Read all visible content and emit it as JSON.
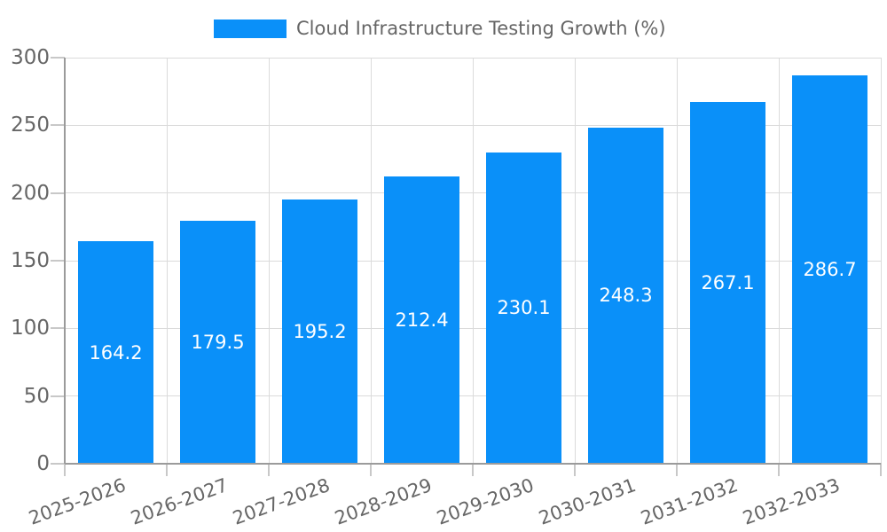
{
  "chart_data": {
    "type": "bar",
    "title": "Cloud Infrastructure Testing Growth (%)",
    "legend": {
      "position": "top",
      "entries": [
        "Cloud Infrastructure Testing Growth (%)"
      ]
    },
    "categories": [
      "2025-2026",
      "2026-2027",
      "2027-2028",
      "2028-2029",
      "2029-2030",
      "2030-2031",
      "2031-2032",
      "2032-2033"
    ],
    "series": [
      {
        "name": "Cloud Infrastructure Testing Growth (%)",
        "values": [
          164.2,
          179.5,
          195.2,
          212.4,
          230.1,
          248.3,
          267.1,
          286.7
        ]
      }
    ],
    "value_labels": [
      "164.2",
      "179.5",
      "195.2",
      "212.4",
      "230.1",
      "248.3",
      "267.1",
      "286.7"
    ],
    "ylim": [
      0,
      300
    ],
    "yticks": [
      0,
      50,
      100,
      150,
      200,
      250,
      300
    ],
    "grid": true,
    "x_label_rotation_deg": -20,
    "colors": {
      "bar": "#0a90f9",
      "value_label": "#ffffff",
      "axis_text": "#666666",
      "gridline": "#dbdbdb",
      "axis_line": "#9b9b9b",
      "tick": "#c8c8c8",
      "background": "#ffffff"
    }
  }
}
